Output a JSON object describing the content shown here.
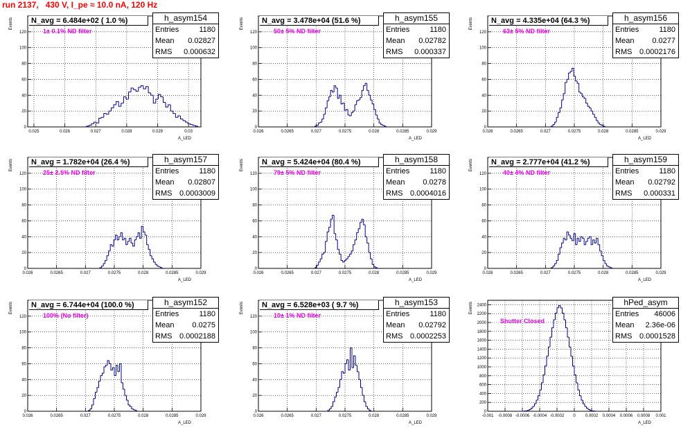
{
  "header": {
    "title": "run 2137,   430 V, I_pe ≈ 10.0 nA, 120 Hz"
  },
  "stats_labels": {
    "entries": "Entries",
    "mean": "Mean",
    "rms": "RMS"
  },
  "chart_data": [
    {
      "type": "bar",
      "name": "h_asym154",
      "xlabel": "A_LED",
      "ylabel": "Events",
      "n_avg_label": "N_avg = 6.484e+02 ( 1.0 %)",
      "filter_label": "1± 0.1% ND filter",
      "stats": {
        "entries": "1180",
        "mean": "0.02827",
        "rms": "0.000632"
      },
      "xlim": [
        0.0248,
        0.0304
      ],
      "ylim": [
        0,
        140
      ],
      "xticks": [
        "0.025",
        "0.026",
        "0.027",
        "0.028",
        "0.029",
        "0.03"
      ],
      "xtick_values": [
        0.025,
        0.026,
        0.027,
        0.028,
        0.029,
        0.03
      ],
      "yticks": [
        "0",
        "20",
        "40",
        "60",
        "80",
        "100",
        "120"
      ],
      "ytick_values": [
        0,
        20,
        40,
        60,
        80,
        100,
        120
      ],
      "binned": {
        "x0": 0.0267,
        "dx": 8e-05,
        "values": [
          1,
          2,
          4,
          6,
          5,
          11,
          12,
          17,
          16,
          20,
          24,
          28,
          32,
          26,
          30,
          38,
          35,
          44,
          49,
          47,
          45,
          50,
          52,
          48,
          51,
          43,
          40,
          30,
          35,
          41,
          38,
          31,
          25,
          28,
          20,
          17,
          12,
          14,
          10,
          8,
          6,
          4,
          3,
          2,
          1
        ]
      }
    },
    {
      "type": "bar",
      "name": "h_asym155",
      "xlabel": "A_LED",
      "ylabel": "Events",
      "n_avg_label": "N_avg = 3.478e+04 (51.6 %)",
      "filter_label": "50± 5% ND filter",
      "stats": {
        "entries": "1180",
        "mean": "0.02782",
        "rms": "0.000337"
      },
      "xlim": [
        0.026,
        0.029
      ],
      "ylim": [
        0,
        140
      ],
      "xticks": [
        "0.026",
        "0.0265",
        "0.027",
        "0.0275",
        "0.028",
        "0.0285",
        "0.029"
      ],
      "xtick_values": [
        0.026,
        0.0265,
        0.027,
        0.0275,
        0.028,
        0.0285,
        0.029
      ],
      "yticks": [
        "0",
        "20",
        "40",
        "60",
        "80",
        "100",
        "120"
      ],
      "ytick_values": [
        0,
        20,
        40,
        60,
        80,
        100,
        120
      ],
      "binned": {
        "x0": 0.02698,
        "dx": 3e-05,
        "values": [
          1,
          2,
          5,
          6,
          10,
          16,
          24,
          33,
          38,
          46,
          44,
          52,
          49,
          36,
          40,
          29,
          30,
          21,
          22,
          15,
          14,
          18,
          20,
          28,
          33,
          34,
          37,
          46,
          52,
          55,
          46,
          40,
          34,
          29,
          22,
          15,
          10,
          5,
          3,
          2,
          1
        ]
      }
    },
    {
      "type": "bar",
      "name": "h_asym156",
      "xlabel": "A_LED",
      "ylabel": "Events",
      "n_avg_label": "N_avg = 4.335e+04 (64.3 %)",
      "filter_label": "63± 5% ND filter",
      "stats": {
        "entries": "1180",
        "mean": "0.0277",
        "rms": "0.0002176"
      },
      "xlim": [
        0.026,
        0.029
      ],
      "ylim": [
        0,
        140
      ],
      "xticks": [
        "0.026",
        "0.0265",
        "0.027",
        "0.0275",
        "0.028",
        "0.0285",
        "0.029"
      ],
      "xtick_values": [
        0.026,
        0.0265,
        0.027,
        0.0275,
        0.028,
        0.0285,
        0.029
      ],
      "yticks": [
        "0",
        "20",
        "40",
        "60",
        "80",
        "100",
        "120"
      ],
      "ytick_values": [
        0,
        20,
        40,
        60,
        80,
        100,
        120
      ],
      "binned": {
        "x0": 0.0271,
        "dx": 3e-05,
        "values": [
          1,
          3,
          6,
          12,
          18,
          24,
          34,
          42,
          56,
          60,
          68,
          70,
          74,
          64,
          58,
          55,
          44,
          42,
          38,
          36,
          30,
          26,
          24,
          20,
          16,
          12,
          8,
          5,
          3,
          2,
          1
        ]
      }
    },
    {
      "type": "bar",
      "name": "h_asym157",
      "xlabel": "A_LED",
      "ylabel": "Events",
      "n_avg_label": "N_avg = 1.782e+04 (26.4 %)",
      "filter_label": "25± 2.5% ND filter",
      "stats": {
        "entries": "1180",
        "mean": "0.02807",
        "rms": "0.0003009"
      },
      "xlim": [
        0.026,
        0.029
      ],
      "ylim": [
        0,
        140
      ],
      "xticks": [
        "0.026",
        "0.0265",
        "0.027",
        "0.0275",
        "0.028",
        "0.0285",
        "0.029"
      ],
      "xtick_values": [
        0.026,
        0.0265,
        0.027,
        0.0275,
        0.028,
        0.0285,
        0.029
      ],
      "yticks": [
        "0",
        "20",
        "40",
        "60",
        "80",
        "100",
        "120"
      ],
      "ytick_values": [
        0,
        20,
        40,
        60,
        80,
        100,
        120
      ],
      "binned": {
        "x0": 0.02725,
        "dx": 3e-05,
        "values": [
          1,
          3,
          6,
          10,
          16,
          22,
          30,
          28,
          36,
          42,
          36,
          40,
          45,
          36,
          38,
          30,
          34,
          38,
          32,
          28,
          36,
          40,
          45,
          38,
          53,
          46,
          42,
          30,
          24,
          16,
          12,
          8,
          5,
          3,
          2,
          1
        ]
      }
    },
    {
      "type": "bar",
      "name": "h_asym158",
      "xlabel": "A_LED",
      "ylabel": "Events",
      "n_avg_label": "N_avg = 5.424e+04 (80.4 %)",
      "filter_label": "79± 5% ND filter",
      "stats": {
        "entries": "1180",
        "mean": "0.0278",
        "rms": "0.0004016"
      },
      "xlim": [
        0.026,
        0.029
      ],
      "ylim": [
        0,
        140
      ],
      "xticks": [
        "0.026",
        "0.0265",
        "0.027",
        "0.0275",
        "0.028",
        "0.0285",
        "0.029"
      ],
      "xtick_values": [
        0.026,
        0.0265,
        0.027,
        0.0275,
        0.028,
        0.0285,
        0.029
      ],
      "yticks": [
        "0",
        "20",
        "40",
        "60",
        "80",
        "100",
        "120"
      ],
      "ytick_values": [
        0,
        20,
        40,
        60,
        80,
        100,
        120
      ],
      "binned": {
        "x0": 0.02698,
        "dx": 3e-05,
        "values": [
          1,
          4,
          8,
          12,
          18,
          20,
          34,
          46,
          52,
          62,
          67,
          44,
          36,
          24,
          18,
          10,
          8,
          10,
          12,
          15,
          18,
          22,
          30,
          36,
          45,
          50,
          58,
          62,
          55,
          40,
          32,
          20,
          12,
          5,
          2,
          1
        ]
      }
    },
    {
      "type": "bar",
      "name": "h_asym159",
      "xlabel": "A_LED",
      "ylabel": "Events",
      "n_avg_label": "N_avg = 2.777e+04 (41.2 %)",
      "filter_label": "40± 4% ND filter",
      "stats": {
        "entries": "1180",
        "mean": "0.02792",
        "rms": "0.000331"
      },
      "xlim": [
        0.026,
        0.029
      ],
      "ylim": [
        0,
        140
      ],
      "xticks": [
        "0.026",
        "0.0265",
        "0.027",
        "0.0275",
        "0.028",
        "0.0285",
        "0.029"
      ],
      "xtick_values": [
        0.026,
        0.0265,
        0.027,
        0.0275,
        0.028,
        0.0285,
        0.029
      ],
      "yticks": [
        "0",
        "20",
        "40",
        "60",
        "80",
        "100",
        "120"
      ],
      "ytick_values": [
        0,
        20,
        40,
        60,
        80,
        100,
        120
      ],
      "binned": {
        "x0": 0.0271,
        "dx": 3e-05,
        "values": [
          1,
          3,
          6,
          10,
          18,
          26,
          32,
          38,
          36,
          46,
          42,
          38,
          35,
          44,
          30,
          38,
          34,
          40,
          38,
          30,
          34,
          38,
          40,
          30,
          36,
          32,
          38,
          30,
          22,
          16,
          10,
          6,
          3,
          2,
          1
        ]
      }
    },
    {
      "type": "bar",
      "name": "h_asym152",
      "xlabel": "A_LED",
      "ylabel": "Events",
      "n_avg_label": "N_avg = 6.744e+04 (100.0 %)",
      "filter_label": "100% (No filter)",
      "stats": {
        "entries": "1180",
        "mean": "0.0275",
        "rms": "0.0002188"
      },
      "xlim": [
        0.026,
        0.029
      ],
      "ylim": [
        0,
        140
      ],
      "xticks": [
        "0.026",
        "0.0265",
        "0.027",
        "0.0275",
        "0.028",
        "0.0285",
        "0.029"
      ],
      "xtick_values": [
        0.026,
        0.0265,
        0.027,
        0.0275,
        0.028,
        0.0285,
        0.029
      ],
      "yticks": [
        "0",
        "20",
        "40",
        "60",
        "80",
        "100",
        "120"
      ],
      "ytick_values": [
        0,
        20,
        40,
        60,
        80,
        100,
        120
      ],
      "binned": {
        "x0": 0.02705,
        "dx": 3e-05,
        "values": [
          1,
          3,
          8,
          16,
          24,
          30,
          38,
          45,
          48,
          56,
          58,
          64,
          60,
          52,
          55,
          45,
          58,
          50,
          60,
          36,
          28,
          20,
          14,
          8,
          6,
          3,
          2,
          1
        ]
      }
    },
    {
      "type": "bar",
      "name": "h_asym153",
      "xlabel": "A_LED",
      "ylabel": "Events",
      "n_avg_label": "N_avg = 6.528e+03 ( 9.7 %)",
      "filter_label": "10± 1% ND filter",
      "stats": {
        "entries": "1180",
        "mean": "0.02792",
        "rms": "0.0002253"
      },
      "xlim": [
        0.026,
        0.029
      ],
      "ylim": [
        0,
        140
      ],
      "xticks": [
        "0.026",
        "0.0265",
        "0.027",
        "0.0275",
        "0.028",
        "0.0285",
        "0.029"
      ],
      "xtick_values": [
        0.026,
        0.0265,
        0.027,
        0.0275,
        0.028,
        0.0285,
        0.029
      ],
      "yticks": [
        "0",
        "20",
        "40",
        "60",
        "80",
        "100",
        "120"
      ],
      "ytick_values": [
        0,
        20,
        40,
        60,
        80,
        100,
        120
      ],
      "binned": {
        "x0": 0.0272,
        "dx": 3e-05,
        "values": [
          1,
          3,
          6,
          12,
          18,
          24,
          30,
          40,
          50,
          48,
          60,
          65,
          52,
          80,
          55,
          70,
          58,
          50,
          40,
          30,
          20,
          12,
          6,
          3,
          1
        ]
      }
    },
    {
      "type": "bar",
      "name": "hPed_asym",
      "xlabel": "A_LED",
      "ylabel": "Events",
      "n_avg_label": "",
      "filter_label": "Shutter Closed",
      "stats": {
        "entries": "46006",
        "mean": "2.36e-06",
        "rms": "0.0001528"
      },
      "xlim": [
        -0.001,
        0.001
      ],
      "ylim": [
        0,
        2500
      ],
      "xticks": [
        "-0.001",
        "-0.0008",
        "-0.0006",
        "-0.0004",
        "-0.0002",
        "0",
        "0.0002",
        "0.0004",
        "0.0006",
        "0.0008",
        "0.001"
      ],
      "xtick_values": [
        -0.001,
        -0.0008,
        -0.0006,
        -0.0004,
        -0.0002,
        0,
        0.0002,
        0.0004,
        0.0006,
        0.0008,
        0.001
      ],
      "yticks": [
        "0",
        "200",
        "400",
        "600",
        "800",
        "1000",
        "1200",
        "1400",
        "1600",
        "1800",
        "2000",
        "2200",
        "2400"
      ],
      "ytick_values": [
        0,
        200,
        400,
        600,
        800,
        1000,
        1200,
        1400,
        1600,
        1800,
        2000,
        2200,
        2400
      ],
      "binned": {
        "x0": -0.0006,
        "dx": 2e-05,
        "values": [
          2,
          5,
          10,
          20,
          40,
          70,
          110,
          170,
          250,
          350,
          480,
          640,
          820,
          1020,
          1240,
          1450,
          1670,
          1880,
          2060,
          2210,
          2330,
          2380,
          2330,
          2210,
          2060,
          1880,
          1670,
          1450,
          1240,
          1020,
          820,
          640,
          480,
          350,
          250,
          170,
          110,
          70,
          40,
          20,
          10,
          5,
          2
        ]
      }
    }
  ]
}
